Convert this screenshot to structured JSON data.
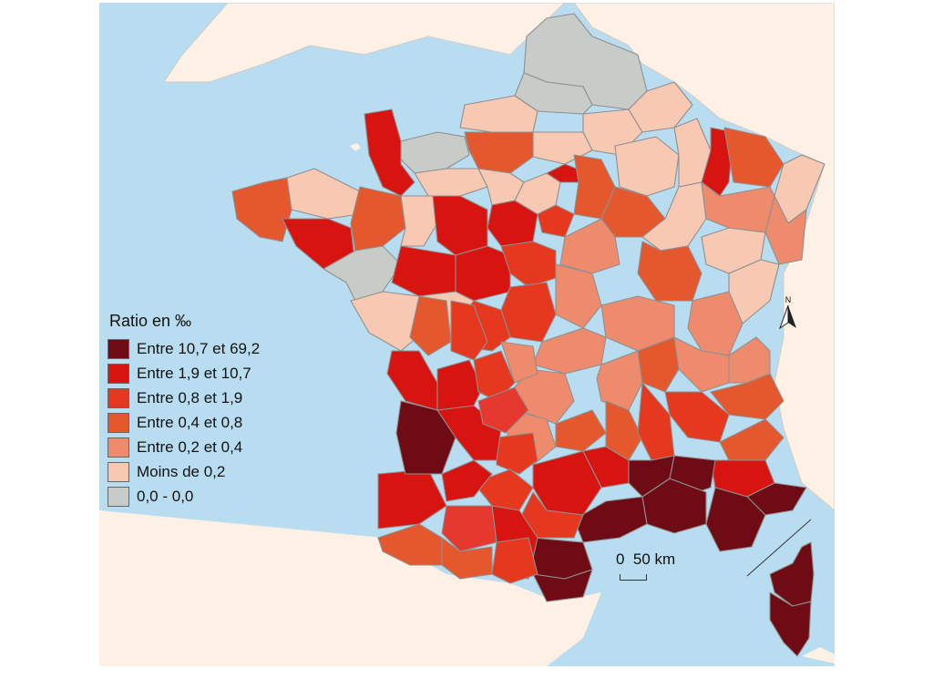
{
  "legend": {
    "title": "Ratio en ‰",
    "classes": [
      {
        "label": "Entre 10,7 et 69,2",
        "color": "#6e0b14"
      },
      {
        "label": "Entre 1,9 et 10,7",
        "color": "#d7140f"
      },
      {
        "label": "Entre 0,8 et 1,9",
        "color": "#e5381e"
      },
      {
        "label": "Entre 0,4 et 0,8",
        "color": "#e5582e"
      },
      {
        "label": "Entre 0,2 et 0,4",
        "color": "#ef8b6d"
      },
      {
        "label": "Moins de 0,2",
        "color": "#f7c8b2"
      },
      {
        "label": "0,0 - 0,0",
        "color": "#c8ccc8"
      }
    ]
  },
  "scale": {
    "label": "0  50 km"
  },
  "north": {
    "label": "N"
  },
  "colors": {
    "sea": "#b9ddf0",
    "land_outside": "#fdf1e6",
    "border": "#8f8f8f"
  }
}
